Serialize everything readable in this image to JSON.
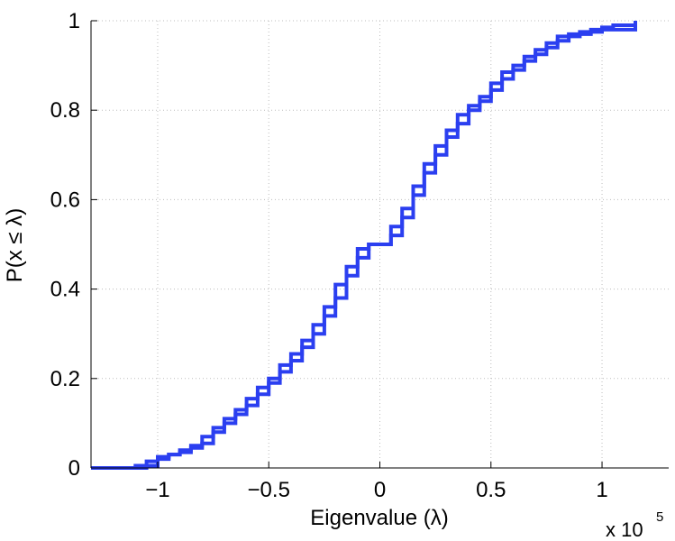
{
  "chart_data": {
    "type": "line",
    "step": true,
    "xlabel": "Eigenvalue (λ)",
    "ylabel": "P(x ≤ λ)",
    "x_multiplier_label": "x 10",
    "x_multiplier_exponent": "5",
    "xlim": [
      -1.3,
      1.3
    ],
    "ylim": [
      0,
      1
    ],
    "grid": true,
    "xticks": [
      -1,
      -0.5,
      0,
      0.5,
      1
    ],
    "xtick_labels": [
      "−1",
      "−0.5",
      "0",
      "0.5",
      "1"
    ],
    "yticks": [
      0,
      0.2,
      0.4,
      0.6,
      0.8,
      1
    ],
    "ytick_labels": [
      "0",
      "0.2",
      "0.4",
      "0.6",
      "0.8",
      "1"
    ],
    "line_color": "#2b3ff0",
    "series": [
      {
        "x": [
          -1.3,
          -1.05,
          -1.0,
          -0.95,
          -0.9,
          -0.85,
          -0.8,
          -0.75,
          -0.7,
          -0.65,
          -0.6,
          -0.55,
          -0.5,
          -0.45,
          -0.4,
          -0.35,
          -0.3,
          -0.25,
          -0.2,
          -0.15,
          -0.1,
          -0.05,
          0.05,
          0.1,
          0.15,
          0.2,
          0.25,
          0.3,
          0.35,
          0.4,
          0.45,
          0.5,
          0.55,
          0.6,
          0.65,
          0.7,
          0.75,
          0.8,
          0.85,
          0.9,
          0.95,
          1.0,
          1.05,
          1.15
        ],
        "y": [
          0,
          0.005,
          0.02,
          0.03,
          0.035,
          0.045,
          0.055,
          0.08,
          0.1,
          0.12,
          0.14,
          0.165,
          0.19,
          0.215,
          0.24,
          0.27,
          0.3,
          0.34,
          0.38,
          0.43,
          0.47,
          0.5,
          0.54,
          0.58,
          0.63,
          0.68,
          0.72,
          0.755,
          0.79,
          0.81,
          0.83,
          0.86,
          0.885,
          0.9,
          0.92,
          0.935,
          0.95,
          0.965,
          0.97,
          0.975,
          0.98,
          0.985,
          0.99,
          1.0
        ]
      },
      {
        "x": [
          -1.3,
          -1.1,
          -1.05,
          -1.0,
          -0.95,
          -0.9,
          -0.85,
          -0.8,
          -0.75,
          -0.7,
          -0.65,
          -0.6,
          -0.55,
          -0.5,
          -0.45,
          -0.4,
          -0.35,
          -0.3,
          -0.25,
          -0.2,
          -0.15,
          -0.1,
          -0.05,
          0.05,
          0.1,
          0.15,
          0.2,
          0.25,
          0.3,
          0.35,
          0.4,
          0.45,
          0.5,
          0.55,
          0.6,
          0.65,
          0.7,
          0.75,
          0.8,
          0.85,
          0.9,
          0.95,
          1.0,
          1.15
        ],
        "y": [
          0,
          0.005,
          0.015,
          0.025,
          0.03,
          0.04,
          0.05,
          0.07,
          0.09,
          0.11,
          0.13,
          0.155,
          0.18,
          0.2,
          0.23,
          0.255,
          0.285,
          0.32,
          0.36,
          0.41,
          0.45,
          0.49,
          0.5,
          0.52,
          0.56,
          0.61,
          0.66,
          0.7,
          0.74,
          0.77,
          0.8,
          0.82,
          0.845,
          0.87,
          0.89,
          0.91,
          0.925,
          0.94,
          0.955,
          0.965,
          0.97,
          0.975,
          0.98,
          1.0
        ]
      }
    ]
  }
}
